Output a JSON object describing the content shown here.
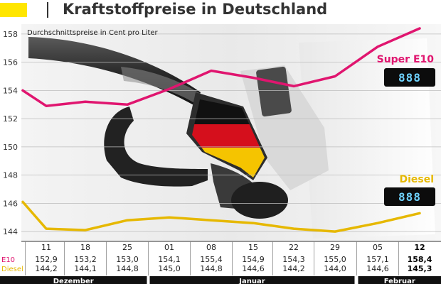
{
  "header": {
    "title": "Kraftstoffpreise in Deutschland"
  },
  "colors": {
    "accent": "#ffe600",
    "e10": "#e0156f",
    "diesel": "#e6b800",
    "lcd": "#6fd3ff"
  },
  "chart_data": {
    "type": "line",
    "title": "Kraftstoffpreise in Deutschland",
    "subtitle": "Durchschnittspreise in Cent pro Liter",
    "ylim": [
      143.3,
      158.7
    ],
    "yticks": [
      144,
      146,
      148,
      150,
      152,
      154,
      156,
      158
    ],
    "grid": true,
    "categories": [
      "11",
      "18",
      "25",
      "01",
      "08",
      "15",
      "22",
      "29",
      "05",
      "12"
    ],
    "months": [
      {
        "label": "Dezember",
        "start": 0,
        "end": 2
      },
      {
        "label": "Januar",
        "start": 3,
        "end": 7
      },
      {
        "label": "Februar",
        "start": 8,
        "end": 9
      }
    ],
    "series": [
      {
        "name": "Super E10",
        "row_label": "E10",
        "color": "#e0156f",
        "start_value": 154.0,
        "values": [
          152.9,
          153.2,
          153.0,
          154.1,
          155.4,
          154.9,
          154.3,
          155.0,
          157.1,
          158.4
        ],
        "display": [
          "152,9",
          "153,2",
          "153,0",
          "154,1",
          "155,4",
          "154,9",
          "154,3",
          "155,0",
          "157,1",
          "158,4"
        ]
      },
      {
        "name": "Diesel",
        "row_label": "Diesel",
        "color": "#e6b800",
        "start_value": 146.1,
        "values": [
          144.2,
          144.1,
          144.8,
          145.0,
          144.8,
          144.6,
          144.2,
          144.0,
          144.6,
          145.3
        ],
        "display": [
          "144,2",
          "144,1",
          "144,8",
          "145,0",
          "144,8",
          "144,6",
          "144,2",
          "144,0",
          "144,6",
          "145,3"
        ]
      }
    ]
  }
}
